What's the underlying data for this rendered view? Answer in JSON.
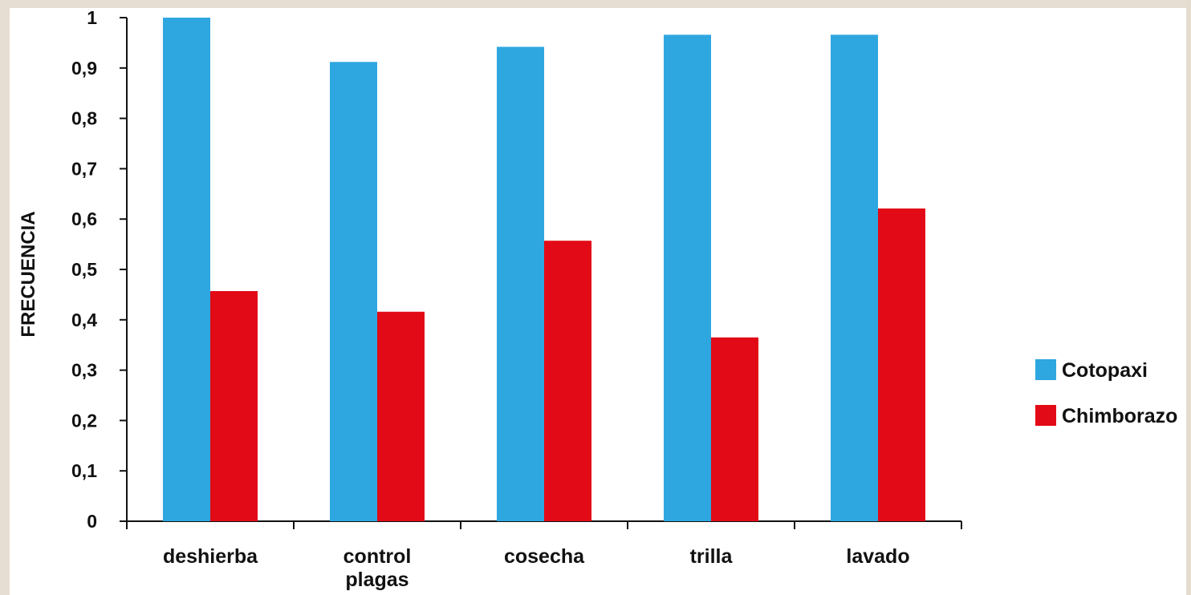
{
  "chart_data": {
    "type": "bar",
    "title": "",
    "xlabel": "",
    "ylabel": "FRECUENCIA",
    "ylim": [
      0,
      1
    ],
    "yticks": [
      "0",
      "0,1",
      "0,2",
      "0,3",
      "0,4",
      "0,5",
      "0,6",
      "0,7",
      "0,8",
      "0,9",
      "1"
    ],
    "categories": [
      [
        "deshierba"
      ],
      [
        "control",
        "plagas"
      ],
      [
        "cosecha"
      ],
      [
        "trilla"
      ],
      [
        "lavado"
      ]
    ],
    "series": [
      {
        "name": "Cotopaxi",
        "color": "#2ea7e0",
        "values": [
          1.0,
          0.912,
          0.942,
          0.966,
          0.966
        ]
      },
      {
        "name": "Chimborazo",
        "color": "#e20a16",
        "values": [
          0.457,
          0.416,
          0.557,
          0.365,
          0.621
        ]
      }
    ],
    "grid": false,
    "legend": "right"
  }
}
